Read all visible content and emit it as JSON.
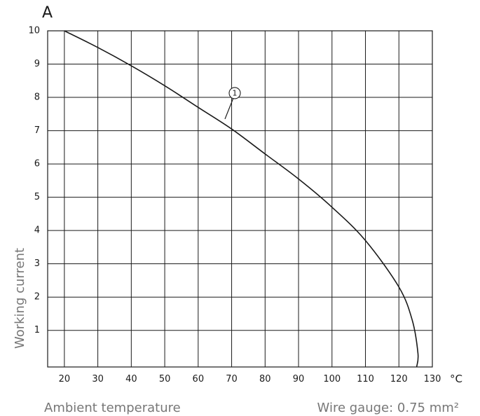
{
  "chart_data": {
    "type": "line",
    "x_unit": "°C",
    "y_unit": "A",
    "ylabel": "Working current",
    "xlabel": "Ambient temperature",
    "note": "Wire gauge: 0.75 mm²",
    "xlim": [
      15,
      130
    ],
    "ylim": [
      -0.1,
      10
    ],
    "x_ticks": [
      20,
      30,
      40,
      50,
      60,
      70,
      80,
      90,
      100,
      110,
      120,
      130
    ],
    "y_ticks": [
      1,
      2,
      3,
      4,
      5,
      6,
      7,
      8,
      9,
      10
    ],
    "grid": true,
    "series": [
      {
        "name": "1",
        "x": [
          20,
          30,
          40,
          50,
          60,
          70,
          80,
          90,
          100,
          110,
          120,
          124,
          125.7,
          125.3
        ],
        "y": [
          10,
          9.5,
          8.95,
          8.35,
          7.7,
          7.05,
          6.3,
          5.55,
          4.7,
          3.7,
          2.3,
          1.3,
          0.3,
          -0.1
        ]
      }
    ],
    "annotation": {
      "label": "1",
      "point": [
        68,
        7.35
      ]
    },
    "colors": {
      "line": "#1a1a1a",
      "grid": "#1a1a1a",
      "gray_text": "#777777"
    }
  }
}
